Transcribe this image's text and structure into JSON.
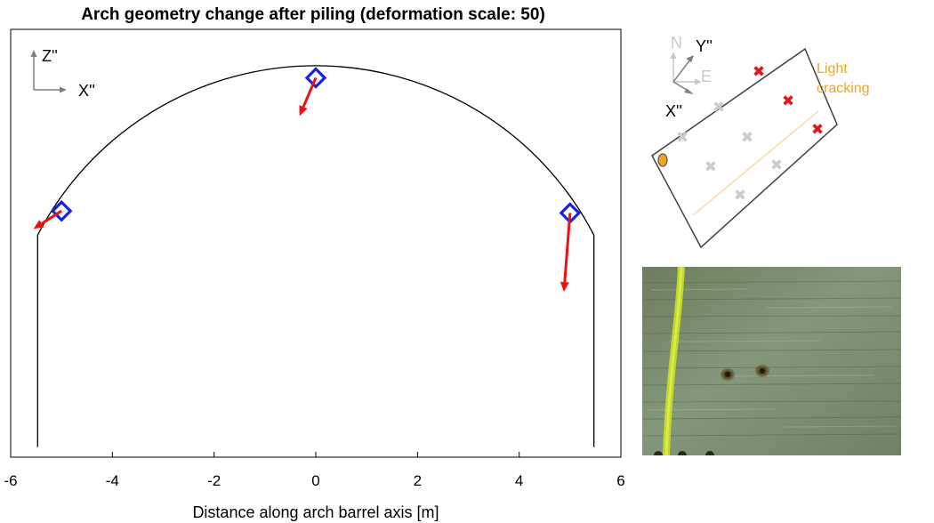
{
  "chart_data": {
    "type": "line",
    "title": "Arch geometry change after piling  (deformation scale: 50)",
    "xlabel": "Distance along arch barrel axis [m]",
    "ylabel": "",
    "xlim": [
      -6,
      6
    ],
    "zlim": [
      0,
      10.6
    ],
    "xticks": [
      "-6",
      "-4",
      "-2",
      "0",
      "2",
      "4",
      "6"
    ],
    "grid": false,
    "deformation_scale": 50,
    "arch_profile": {
      "crown_x": 0,
      "crown_z": 9.7,
      "springing_left_x": -5.47,
      "springing_right_x": 5.47,
      "springing_z": 5.5,
      "base_z": 0.25
    },
    "monitoring_points": [
      {
        "x": -5.0,
        "z": 6.1,
        "dx": -0.55,
        "dz": -0.35
      },
      {
        "x": 0.0,
        "z": 9.4,
        "dx": -0.32,
        "dz": -0.75
      },
      {
        "x": 5.0,
        "z": 6.05,
        "dx": -0.12,
        "dz": -1.55
      }
    ],
    "colors": {
      "arch": "#000000",
      "marker": "#1a22e0",
      "arrow": "#ee1111"
    }
  },
  "axes_indicator": {
    "vertical_label": "Z''",
    "horizontal_label": "X''"
  },
  "plan_inset": {
    "compass_north": "N",
    "compass_east": "E",
    "axis_y": "Y''",
    "axis_x": "X''",
    "crack_label_line1": "Light",
    "crack_label_line2": "cracking",
    "colors": {
      "compass": "#c8c8c8",
      "active_marker": "#e8141b",
      "inactive_marker": "#cccccc",
      "crack": "#f0a526",
      "reference_point": "#f0a526"
    }
  },
  "photo": {
    "icon": "concrete-surface-photo"
  }
}
